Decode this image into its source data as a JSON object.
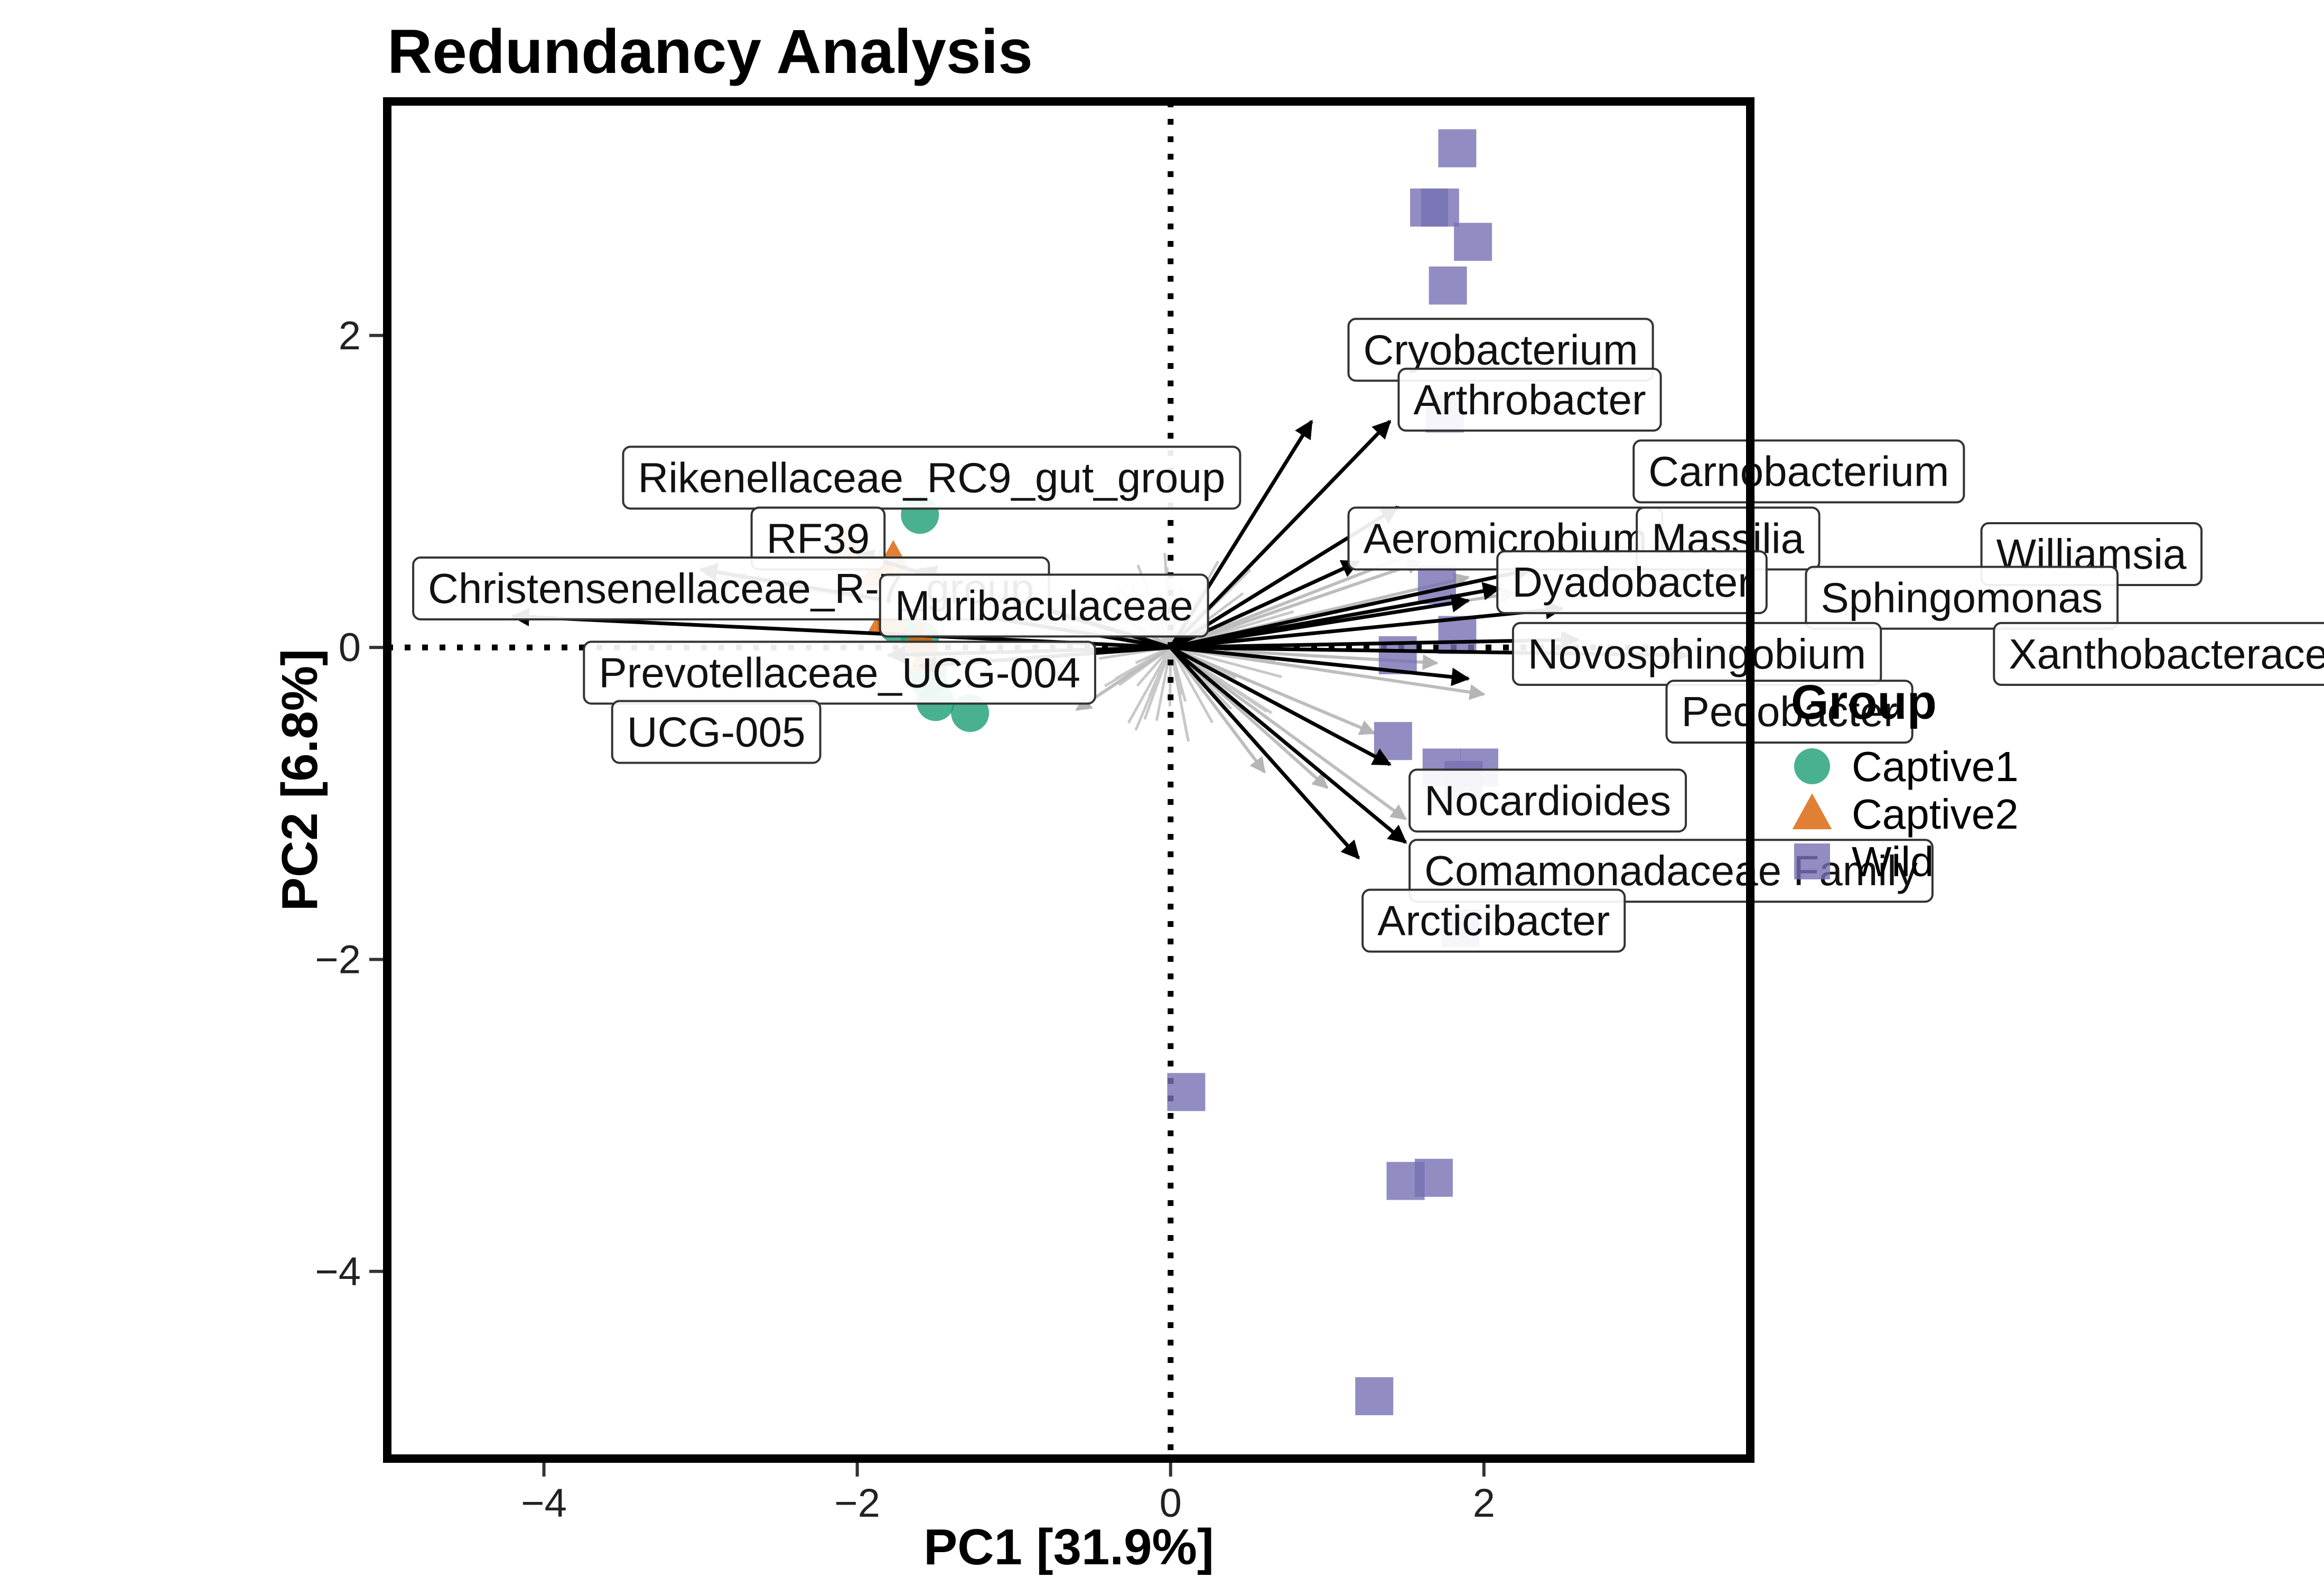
{
  "chart_data": {
    "type": "scatter",
    "title": "Redundancy Analysis",
    "xlabel": "PC1 [31.9%]",
    "ylabel": "PC2 [6.8%]",
    "xlim": [
      -5.0,
      3.7
    ],
    "ylim": [
      -5.2,
      3.5
    ],
    "xticks": [
      -4,
      -2,
      0,
      2
    ],
    "yticks": [
      -4,
      -2,
      0,
      2
    ],
    "xtick_labels": [
      "−4",
      "−2",
      "0",
      "2"
    ],
    "ytick_labels": [
      "−4",
      "−2",
      "0",
      "2"
    ],
    "reference_lines": {
      "x": 0,
      "y": 0
    },
    "legend": {
      "title": "Group",
      "position": "right",
      "entries": [
        {
          "name": "Captive1",
          "shape": "circle",
          "color": "#1b9e77"
        },
        {
          "name": "Captive2",
          "shape": "triangle",
          "color": "#d95f02"
        },
        {
          "name": "Wild",
          "shape": "square",
          "color": "#7570b3"
        }
      ]
    },
    "series": [
      {
        "name": "Captive1",
        "shape": "circle",
        "color": "#1b9e77",
        "points": [
          [
            -1.6,
            0.85
          ],
          [
            -1.55,
            -0.2
          ],
          [
            -1.5,
            -0.35
          ],
          [
            -1.28,
            -0.42
          ],
          [
            -1.6,
            0.05
          ],
          [
            -1.75,
            0.15
          ]
        ]
      },
      {
        "name": "Captive2",
        "shape": "triangle",
        "color": "#d95f02",
        "points": [
          [
            -2.08,
            0.62
          ],
          [
            -1.77,
            0.55
          ],
          [
            -1.85,
            0.5
          ],
          [
            -1.6,
            0.05
          ],
          [
            -1.55,
            -0.05
          ],
          [
            -1.8,
            0.2
          ]
        ]
      },
      {
        "name": "Wild",
        "shape": "square",
        "color": "#7570b3",
        "points": [
          [
            1.83,
            3.2
          ],
          [
            1.65,
            2.82
          ],
          [
            1.72,
            2.82
          ],
          [
            1.93,
            2.6
          ],
          [
            1.77,
            2.32
          ],
          [
            1.75,
            1.5
          ],
          [
            1.7,
            0.4
          ],
          [
            1.83,
            0.08
          ],
          [
            1.45,
            -0.05
          ],
          [
            1.42,
            -0.6
          ],
          [
            1.73,
            -0.77
          ],
          [
            1.97,
            -0.77
          ],
          [
            1.87,
            -0.85
          ],
          [
            1.85,
            -1.8
          ],
          [
            0.1,
            -2.85
          ],
          [
            1.5,
            -3.42
          ],
          [
            1.68,
            -3.4
          ],
          [
            1.3,
            -4.8
          ]
        ]
      }
    ],
    "highlighted_vectors": [
      {
        "label": "Cryobacterium",
        "end": [
          0.9,
          1.45
        ]
      },
      {
        "label": "Arthrobacter",
        "end": [
          1.4,
          1.45
        ]
      },
      {
        "label": "Carnobacterium",
        "end": [
          1.45,
          0.9
        ]
      },
      {
        "label": "Aeromicrobium",
        "end": [
          1.2,
          0.55
        ]
      },
      {
        "label": "Massilia",
        "end": [
          2.1,
          0.38
        ]
      },
      {
        "label": "Williamsia",
        "end": [
          2.3,
          0.5
        ]
      },
      {
        "label": "Dyadobacter",
        "end": [
          1.9,
          0.3
        ]
      },
      {
        "label": "Sphingomonas",
        "end": [
          2.5,
          0.25
        ]
      },
      {
        "label": "Novosphingobium",
        "end": [
          2.6,
          0.05
        ]
      },
      {
        "label": "Xanthobacteraceae Family",
        "end": [
          3.3,
          -0.05
        ]
      },
      {
        "label": "Pedobacter",
        "end": [
          1.9,
          -0.2
        ]
      },
      {
        "label": "Nocardioides",
        "end": [
          1.4,
          -0.75
        ]
      },
      {
        "label": "Comamonadaceae Family",
        "end": [
          1.2,
          -1.35
        ]
      },
      {
        "label": "Arcticibacter",
        "end": [
          1.5,
          -1.25
        ]
      },
      {
        "label": "Rikenellaceae_RC9_gut_group",
        "end": [
          -3.0,
          0.5
        ]
      },
      {
        "label": "RF39",
        "end": [
          -2.0,
          0.6
        ]
      },
      {
        "label": "Christensenellaceae_R-7_group",
        "end": [
          -4.2,
          0.2
        ]
      },
      {
        "label": "Muribaculaceae",
        "end": [
          -1.6,
          0.5
        ]
      },
      {
        "label": "Prevotellaceae_UCG-004",
        "end": [
          -1.8,
          -0.05
        ]
      },
      {
        "label": "UCG-005",
        "end": [
          -1.6,
          -0.12
        ]
      }
    ],
    "labels": [
      {
        "text": "Cryobacterium",
        "at": [
          1.23,
          1.91
        ]
      },
      {
        "text": "Arthrobacter",
        "at": [
          1.55,
          1.59
        ]
      },
      {
        "text": "Carnobacterium",
        "at": [
          3.05,
          1.13
        ]
      },
      {
        "text": "Aeromicrobium",
        "at": [
          1.23,
          0.7
        ]
      },
      {
        "text": "Massilia",
        "at": [
          3.07,
          0.7
        ]
      },
      {
        "text": "Williamsia",
        "at": [
          5.27,
          0.6
        ]
      },
      {
        "text": "Dyadobacter",
        "at": [
          2.18,
          0.42
        ]
      },
      {
        "text": "Sphingomonas",
        "at": [
          4.15,
          0.32
        ]
      },
      {
        "text": "Novosphingobium",
        "at": [
          2.28,
          -0.04
        ]
      },
      {
        "text": "Xanthobacteraceae Family",
        "at": [
          5.35,
          -0.04
        ]
      },
      {
        "text": "Pedobacter",
        "at": [
          3.26,
          -0.41
        ]
      },
      {
        "text": "Nocardioides",
        "at": [
          1.62,
          -0.98
        ]
      },
      {
        "text": "Comamonadaceae Family",
        "at": [
          1.62,
          -1.43
        ]
      },
      {
        "text": "Arcticibacter",
        "at": [
          1.32,
          -1.75
        ]
      },
      {
        "text": "Rikenellaceae_RC9_gut_group",
        "at": [
          -3.4,
          1.09
        ]
      },
      {
        "text": "RF39",
        "at": [
          -2.58,
          0.7
        ]
      },
      {
        "text": "Christensenellaceae_R-7_group",
        "at": [
          -4.74,
          0.38
        ]
      },
      {
        "text": "Muribaculaceae",
        "at": [
          -1.76,
          0.27
        ]
      },
      {
        "text": "Prevotellaceae_UCG-004",
        "at": [
          -3.65,
          -0.16
        ]
      },
      {
        "text": "UCG-005",
        "at": [
          -3.47,
          -0.54
        ]
      }
    ]
  }
}
